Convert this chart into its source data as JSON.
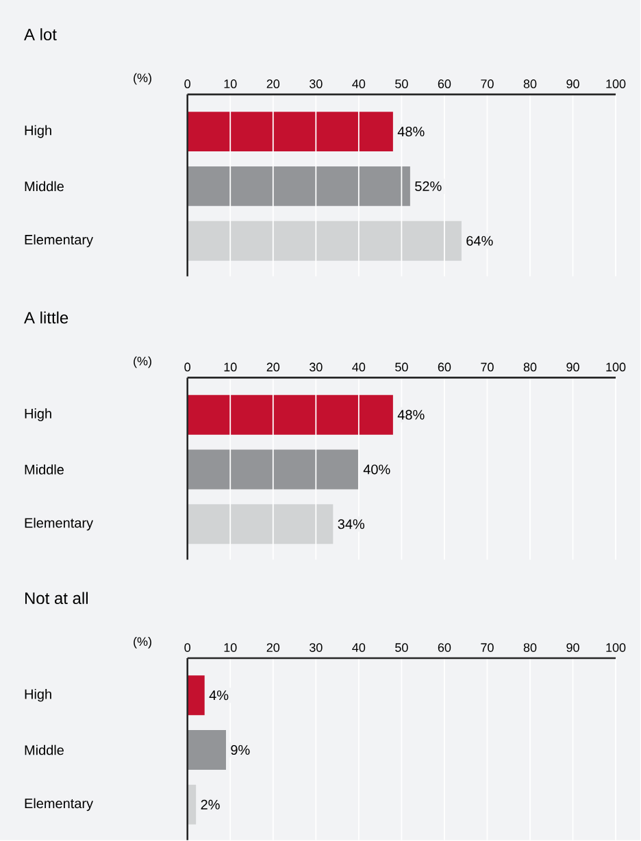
{
  "chart_data": [
    {
      "type": "bar",
      "orientation": "horizontal",
      "title": "A lot",
      "xlabel": "(%)",
      "categories": [
        "High",
        "Middle",
        "Elementary"
      ],
      "values": [
        48,
        52,
        64
      ],
      "colors": [
        "#c4112f",
        "#939598",
        "#d1d3d4"
      ],
      "value_labels": [
        "48%",
        "52%",
        "64%"
      ],
      "xlim": [
        0,
        100
      ],
      "xticks": [
        0,
        10,
        20,
        30,
        40,
        50,
        60,
        70,
        80,
        90,
        100
      ],
      "grid": "x"
    },
    {
      "type": "bar",
      "orientation": "horizontal",
      "title": "A little",
      "xlabel": "(%)",
      "categories": [
        "High",
        "Middle",
        "Elementary"
      ],
      "values": [
        48,
        40,
        34
      ],
      "colors": [
        "#c4112f",
        "#939598",
        "#d1d3d4"
      ],
      "value_labels": [
        "48%",
        "40%",
        "34%"
      ],
      "xlim": [
        0,
        100
      ],
      "xticks": [
        0,
        10,
        20,
        30,
        40,
        50,
        60,
        70,
        80,
        90,
        100
      ],
      "grid": "x"
    },
    {
      "type": "bar",
      "orientation": "horizontal",
      "title": "Not at all",
      "xlabel": "(%)",
      "categories": [
        "High",
        "Middle",
        "Elementary"
      ],
      "values": [
        4,
        9,
        2
      ],
      "colors": [
        "#c4112f",
        "#939598",
        "#d1d3d4"
      ],
      "value_labels": [
        "4%",
        "9%",
        "2%"
      ],
      "xlim": [
        0,
        100
      ],
      "xticks": [
        0,
        10,
        20,
        30,
        40,
        50,
        60,
        70,
        80,
        90,
        100
      ],
      "grid": "x"
    }
  ]
}
